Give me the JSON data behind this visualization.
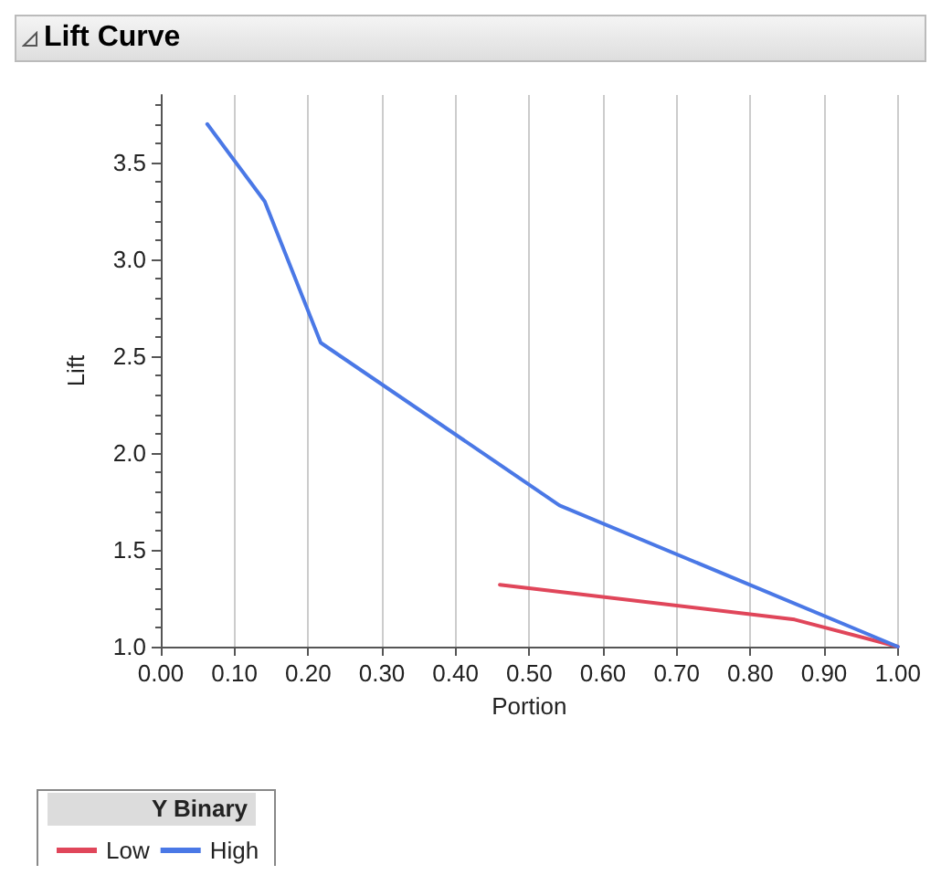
{
  "chart_data": {
    "type": "line",
    "title": "Lift Curve",
    "xlabel": "Portion",
    "ylabel": "Lift",
    "legend_title": "Y Binary",
    "legend": "bottom left",
    "grid": "x",
    "marker": "none",
    "line_style": "solid",
    "xlim": [
      0,
      1
    ],
    "ylim": [
      1,
      3.85
    ],
    "xticks": [
      {
        "value": 0,
        "label": "0.00"
      },
      {
        "value": 0.1,
        "label": "0.10"
      },
      {
        "value": 0.2,
        "label": "0.20"
      },
      {
        "value": 0.3,
        "label": "0.30"
      },
      {
        "value": 0.4,
        "label": "0.40"
      },
      {
        "value": 0.5,
        "label": "0.50"
      },
      {
        "value": 0.6,
        "label": "0.60"
      },
      {
        "value": 0.7,
        "label": "0.70"
      },
      {
        "value": 0.8,
        "label": "0.80"
      },
      {
        "value": 0.9,
        "label": "0.90"
      },
      {
        "value": 1,
        "label": "1.00"
      }
    ],
    "yticks": [
      {
        "value": 1,
        "label": "1.0"
      },
      {
        "value": 1.5,
        "label": "1.5"
      },
      {
        "value": 2,
        "label": "2.0"
      },
      {
        "value": 2.5,
        "label": "2.5"
      },
      {
        "value": 3,
        "label": "3.0"
      },
      {
        "value": 3.5,
        "label": "3.5"
      }
    ],
    "series": [
      {
        "name": "Low",
        "color": "#e0465a",
        "x": [
          0.46,
          0.86,
          1.0
        ],
        "values": [
          1.32,
          1.14,
          1.0
        ]
      },
      {
        "name": "High",
        "color": "#4a78e6",
        "x": [
          0.063,
          0.141,
          0.217,
          0.541,
          1.0
        ],
        "values": [
          3.7,
          3.3,
          2.57,
          1.73,
          1.0
        ]
      }
    ]
  }
}
